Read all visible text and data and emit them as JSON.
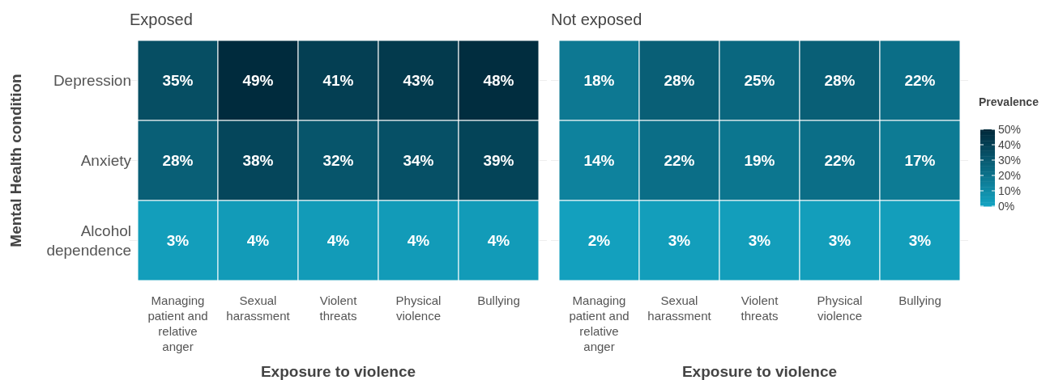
{
  "chart_data": [
    {
      "type": "heatmap",
      "title": "Exposed",
      "xlabel": "Exposure to violence",
      "ylabel": "Mental Health condition",
      "categories": [
        "Managing patient and relative anger",
        "Sexual harassment",
        "Violent threats",
        "Physical violence",
        "Bullying"
      ],
      "y_categories": [
        "Depression",
        "Anxiety",
        "Alcohol dependence"
      ],
      "cells": [
        [
          35,
          49,
          41,
          43,
          48
        ],
        [
          28,
          38,
          32,
          34,
          39
        ],
        [
          3,
          4,
          4,
          4,
          4
        ]
      ],
      "cell_labels": [
        [
          "35%",
          "49%",
          "41%",
          "43%",
          "48%"
        ],
        [
          "28%",
          "38%",
          "32%",
          "34%",
          "39%"
        ],
        [
          "3%",
          "4%",
          "4%",
          "4%",
          "4%"
        ]
      ],
      "grid": "y"
    },
    {
      "type": "heatmap",
      "title": "Not exposed",
      "xlabel": "Exposure to violence",
      "categories": [
        "Managing patient and relative anger",
        "Sexual harassment",
        "Violent threats",
        "Physical violence",
        "Bullying"
      ],
      "y_categories": [
        null,
        null,
        null
      ],
      "tick_labels": "x",
      "grid": "y",
      "cells": [
        [
          18,
          28,
          25,
          28,
          22
        ],
        [
          14,
          22,
          19,
          22,
          17
        ],
        [
          2,
          3,
          3,
          3,
          3
        ]
      ],
      "cell_labels": [
        [
          "18%",
          "28%",
          "25%",
          "28%",
          "22%"
        ],
        [
          "14%",
          "22%",
          "19%",
          "22%",
          "17%"
        ],
        [
          "2%",
          "3%",
          "3%",
          "3%",
          "3%"
        ]
      ],
      "clabel": "Prevalence",
      "clim": [
        0,
        50
      ],
      "cticks": [
        {
          "value": 0,
          "label": "0%"
        },
        {
          "value": 10,
          "label": "10%"
        },
        {
          "value": 20,
          "label": "20%"
        },
        {
          "value": 30,
          "label": "30%"
        },
        {
          "value": 40,
          "label": "40%"
        },
        {
          "value": 50,
          "label": "50%"
        }
      ]
    }
  ]
}
